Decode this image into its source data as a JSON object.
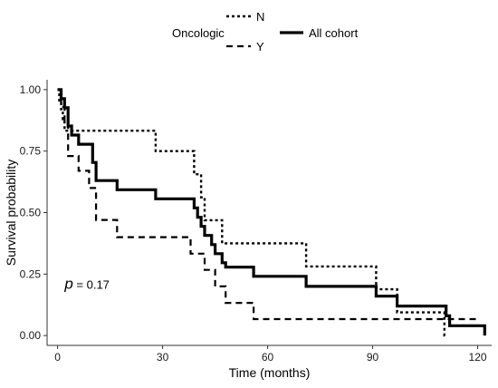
{
  "chart_data": {
    "type": "line",
    "subtype": "kaplan-meier step",
    "xlabel": "Time  (months)",
    "ylabel": "Survival probability",
    "xlim": [
      -3,
      124
    ],
    "ylim": [
      -0.04,
      1.04
    ],
    "xticks": [
      0,
      30,
      60,
      90,
      120
    ],
    "yticks": [
      0.0,
      0.25,
      0.5,
      0.75,
      1.0
    ],
    "ytick_labels": [
      "0.00",
      "0.25",
      "0.50",
      "0.75",
      "1.00"
    ],
    "grid": false,
    "annotation": {
      "p_symbol": "p",
      "p_text": " = 0.17",
      "x": 2,
      "y": 0.19
    },
    "legend": {
      "position": "top",
      "group_title": "Oncologic",
      "entries": [
        {
          "label": "N",
          "style": "dotted"
        },
        {
          "label": "Y",
          "style": "dashed"
        },
        {
          "label": "All cohort",
          "style": "solid"
        }
      ]
    },
    "series": [
      {
        "name": "N",
        "style": "dotted",
        "color": "#000000",
        "x": [
          0,
          0.5,
          1,
          1.5,
          2,
          28,
          39,
          41,
          42,
          47,
          71,
          91,
          97,
          110.5,
          111
        ],
        "y": [
          1.0,
          0.95,
          0.92,
          0.88,
          0.833,
          0.75,
          0.656,
          0.562,
          0.469,
          0.375,
          0.281,
          0.188,
          0.094,
          0.0,
          0.0
        ]
      },
      {
        "name": "Y",
        "style": "dashed",
        "color": "#000000",
        "x": [
          0,
          1,
          2,
          3,
          6,
          9,
          11,
          17,
          38,
          42,
          45,
          48,
          56,
          110,
          120
        ],
        "y": [
          1.0,
          0.93,
          0.87,
          0.73,
          0.67,
          0.6,
          0.47,
          0.4,
          0.333,
          0.267,
          0.2,
          0.133,
          0.067,
          0.067,
          0.067
        ]
      },
      {
        "name": "All cohort",
        "style": "solid",
        "color": "#000000",
        "x": [
          0,
          1,
          2,
          3,
          4,
          6,
          10,
          11,
          17,
          28,
          39,
          40,
          41,
          42,
          44,
          45,
          47,
          48,
          56,
          71,
          91,
          97,
          111,
          112,
          122
        ],
        "y": [
          1.0,
          0.963,
          0.926,
          0.852,
          0.815,
          0.778,
          0.704,
          0.63,
          0.593,
          0.556,
          0.519,
          0.481,
          0.444,
          0.407,
          0.37,
          0.333,
          0.296,
          0.278,
          0.241,
          0.2,
          0.16,
          0.12,
          0.08,
          0.04,
          0.0
        ]
      }
    ]
  }
}
